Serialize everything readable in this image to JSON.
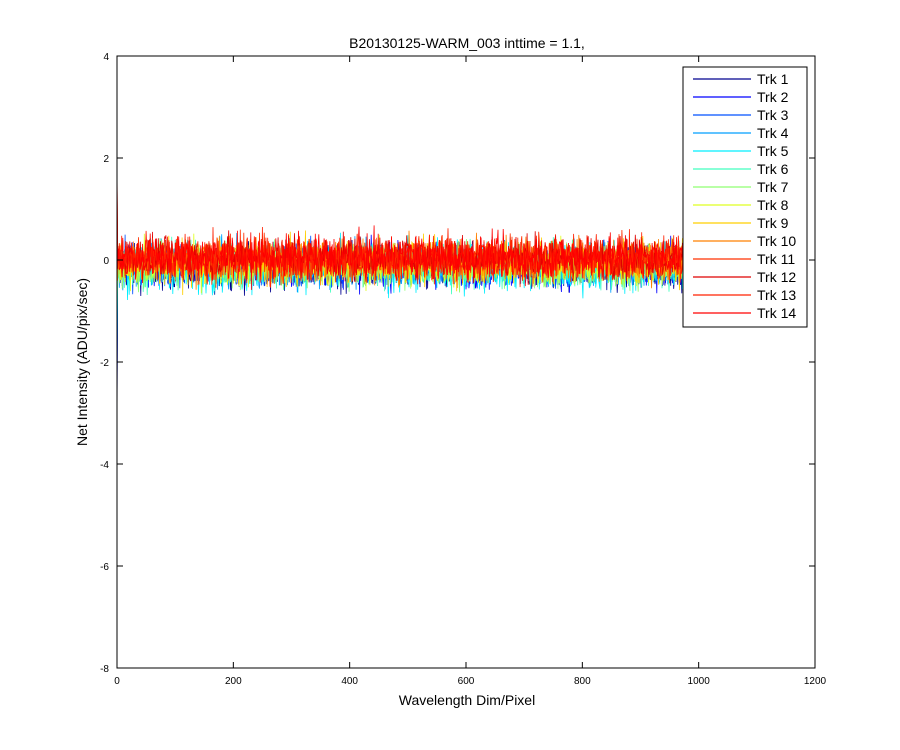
{
  "chart_data": {
    "type": "line",
    "title": "B20130125-WARM_003 inttime = 1.1,",
    "xlabel": "Wavelength Dim/Pixel",
    "ylabel": "Net Intensity (ADU/pix/sec)",
    "xlim": [
      0,
      1200
    ],
    "ylim": [
      -8,
      4
    ],
    "xticks": [
      0,
      200,
      400,
      600,
      800,
      1000,
      1200
    ],
    "yticks": [
      -8,
      -6,
      -4,
      -2,
      0,
      2,
      4
    ],
    "xtick_labels": [
      "0",
      "200",
      "400",
      "600",
      "800",
      "1000",
      "1200"
    ],
    "ytick_labels": [
      "-8",
      "-6",
      "-4",
      "-2",
      "0",
      "2",
      "4"
    ],
    "grid": false,
    "legend_position": "top-right",
    "x_range_of_data": [
      0,
      1024
    ],
    "series": [
      {
        "name": "Trk 1",
        "color": "#00008f",
        "mean": -0.15,
        "spread": 0.35,
        "start_spike": -3.4
      },
      {
        "name": "Trk 2",
        "color": "#0000ff",
        "mean": -0.12,
        "spread": 0.35,
        "start_spike": -3.0
      },
      {
        "name": "Trk 3",
        "color": "#0050ff",
        "mean": -0.1,
        "spread": 0.35,
        "start_spike": -2.6
      },
      {
        "name": "Trk 4",
        "color": "#009fff",
        "mean": -0.1,
        "spread": 0.35,
        "start_spike": -2.2
      },
      {
        "name": "Trk 5",
        "color": "#00efff",
        "mean": -0.12,
        "spread": 0.4,
        "start_spike": -1.8
      },
      {
        "name": "Trk 6",
        "color": "#40ffbf",
        "mean": -0.12,
        "spread": 0.35,
        "start_spike": -1.2
      },
      {
        "name": "Trk 7",
        "color": "#8fff70",
        "mean": -0.1,
        "spread": 0.35,
        "start_spike": -0.8
      },
      {
        "name": "Trk 8",
        "color": "#dfff20",
        "mean": -0.08,
        "spread": 0.35,
        "start_spike": 0.6
      },
      {
        "name": "Trk 9",
        "color": "#ffcf00",
        "mean": -0.05,
        "spread": 0.35,
        "start_spike": 1.0
      },
      {
        "name": "Trk 10",
        "color": "#ff8000",
        "mean": 0.0,
        "spread": 0.35,
        "start_spike": 1.2
      },
      {
        "name": "Trk 11",
        "color": "#ff3000",
        "mean": 0.02,
        "spread": 0.35,
        "start_spike": 1.4
      },
      {
        "name": "Trk 12",
        "color": "#df0000",
        "mean": 0.05,
        "spread": 0.35,
        "start_spike": 1.6
      },
      {
        "name": "Trk 13",
        "color": "#ff2000",
        "mean": 0.05,
        "spread": 0.35,
        "start_spike": 1.8
      },
      {
        "name": "Trk 14",
        "color": "#ff0000",
        "mean": 0.05,
        "spread": 0.35,
        "start_spike": 1.9
      }
    ]
  }
}
